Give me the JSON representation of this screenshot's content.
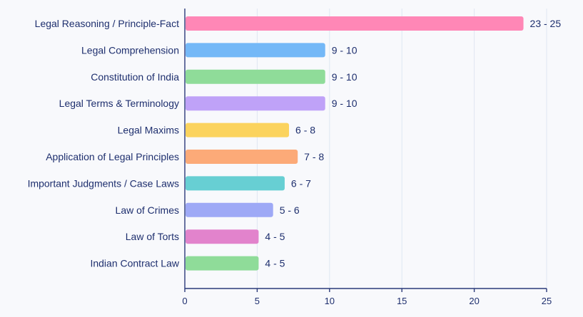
{
  "chart_data": {
    "type": "bar",
    "orientation": "horizontal",
    "title": "",
    "xlabel": "",
    "ylabel": "",
    "xlim": [
      0,
      25
    ],
    "x_ticks": [
      0,
      5,
      10,
      15,
      20,
      25
    ],
    "grid": "vertical",
    "categories": [
      "Legal Reasoning / Principle-Fact",
      "Legal Comprehension",
      "Constitution of India",
      "Legal Terms & Terminology",
      "Legal Maxims",
      "Application of Legal Principles",
      "Important Judgments / Case Laws",
      "Law of Crimes",
      "Law of Torts",
      "Indian Contract Law"
    ],
    "values": [
      23.4,
      9.7,
      9.7,
      9.7,
      7.2,
      7.8,
      6.9,
      6.1,
      5.1,
      5.1
    ],
    "value_labels": [
      "23 - 25",
      "9 - 10",
      "9 - 10",
      "9 - 10",
      "6 - 8",
      "7 - 8",
      "6 - 7",
      "5 - 6",
      "4 - 5",
      "4 - 5"
    ],
    "colors": [
      "#ff87b6",
      "#74b8f7",
      "#8fdc99",
      "#bfa2f8",
      "#fbd35e",
      "#fcaa78",
      "#67cfd3",
      "#9ea9f6",
      "#e283cc",
      "#8fdc99"
    ]
  }
}
